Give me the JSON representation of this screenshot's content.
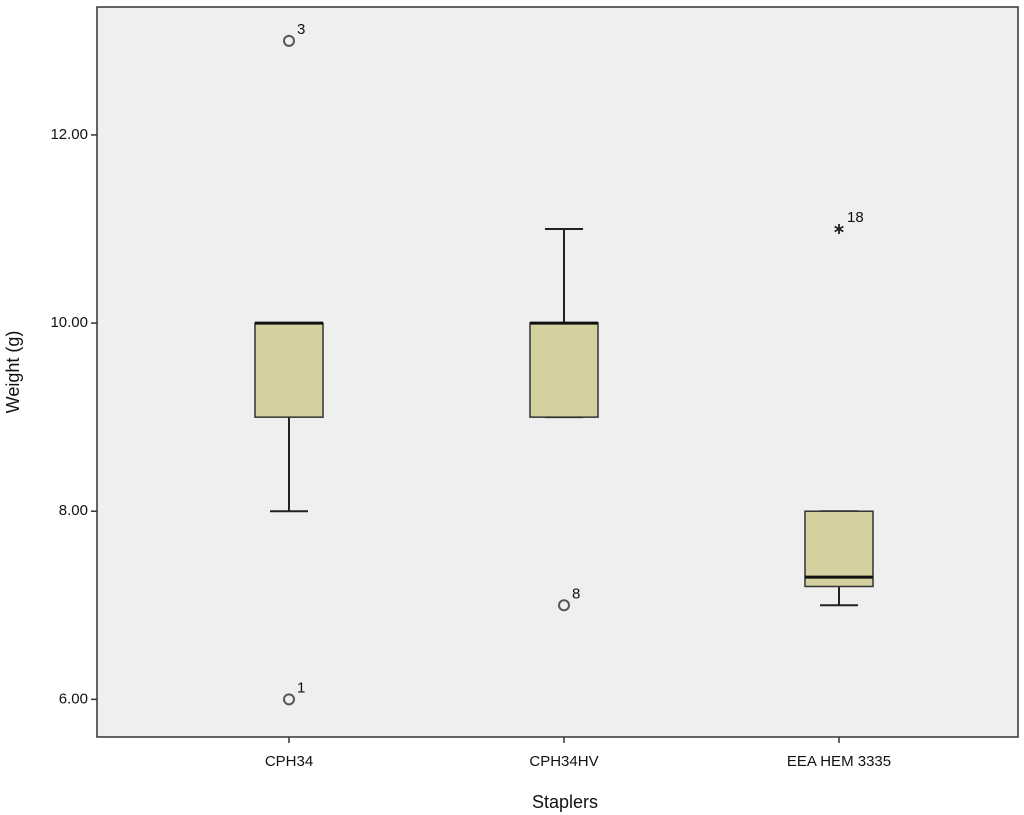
{
  "chart_data": {
    "type": "box",
    "x_label": "Staplers",
    "y_label": "Weight (g)",
    "categories": [
      "CPH34",
      "CPH34HV",
      "EEA HEM 3335"
    ],
    "boxes": [
      {
        "min": 8,
        "q1": 9,
        "median": 10,
        "q3": 10,
        "max": 10
      },
      {
        "min": 9,
        "q1": 9,
        "median": 10,
        "q3": 10,
        "max": 11
      },
      {
        "min": 7,
        "q1": 7.2,
        "median": 7.3,
        "q3": 8,
        "max": 8
      }
    ],
    "outliers": [
      [
        {
          "value": 13,
          "label": "3",
          "marker": "circle"
        },
        {
          "value": 6,
          "label": "1",
          "marker": "circle"
        }
      ],
      [
        {
          "value": 7,
          "label": "8",
          "marker": "circle"
        }
      ],
      [
        {
          "value": 11,
          "label": "18",
          "marker": "asterisk"
        }
      ]
    ],
    "color": "#d5d0a0",
    "background": "#efefef",
    "ylim": [
      5.6,
      13.36
    ],
    "yticks": [
      {
        "value": 6,
        "label": "6.00"
      },
      {
        "value": 8,
        "label": "8.00"
      },
      {
        "value": 10,
        "label": "10.00"
      },
      {
        "value": 12,
        "label": "12.00"
      }
    ]
  }
}
